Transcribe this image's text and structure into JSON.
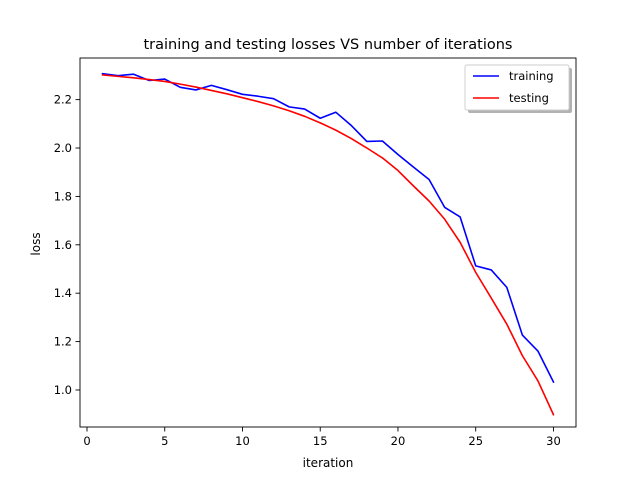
{
  "chart_data": {
    "type": "line",
    "title": "training and testing losses VS number of iterations",
    "xlabel": "iteration",
    "ylabel": "loss",
    "xlim": [
      -0.45,
      31.45
    ],
    "ylim": [
      0.847,
      2.372
    ],
    "xticks": [
      0,
      5,
      10,
      15,
      20,
      25,
      30
    ],
    "yticks": [
      1.0,
      1.2,
      1.4,
      1.6,
      1.8,
      2.0,
      2.2
    ],
    "xtick_labels": [
      "0",
      "5",
      "10",
      "15",
      "20",
      "25",
      "30"
    ],
    "ytick_labels": [
      "1.0",
      "1.2",
      "1.4",
      "1.6",
      "1.8",
      "2.0",
      "2.2"
    ],
    "grid": false,
    "legend": {
      "location": "upper right",
      "entries": [
        "training",
        "testing"
      ]
    },
    "x": [
      1,
      2,
      3,
      4,
      5,
      6,
      7,
      8,
      9,
      10,
      11,
      12,
      13,
      14,
      15,
      16,
      17,
      18,
      19,
      20,
      21,
      22,
      23,
      24,
      25,
      26,
      27,
      28,
      29,
      30
    ],
    "series": [
      {
        "name": "training",
        "color": "#0000ff",
        "values": [
          2.307,
          2.299,
          2.305,
          2.279,
          2.285,
          2.251,
          2.24,
          2.259,
          2.241,
          2.222,
          2.214,
          2.204,
          2.17,
          2.161,
          2.123,
          2.148,
          2.093,
          2.027,
          2.029,
          1.973,
          1.921,
          1.87,
          1.755,
          1.715,
          1.513,
          1.496,
          1.424,
          1.227,
          1.161,
          1.033
        ]
      },
      {
        "name": "testing",
        "color": "#ff0000",
        "values": [
          2.302,
          2.296,
          2.29,
          2.283,
          2.275,
          2.264,
          2.252,
          2.238,
          2.224,
          2.208,
          2.192,
          2.174,
          2.154,
          2.131,
          2.104,
          2.074,
          2.039,
          2.0,
          1.959,
          1.907,
          1.843,
          1.781,
          1.706,
          1.61,
          1.486,
          1.38,
          1.272,
          1.142,
          1.038,
          0.898
        ]
      }
    ]
  }
}
